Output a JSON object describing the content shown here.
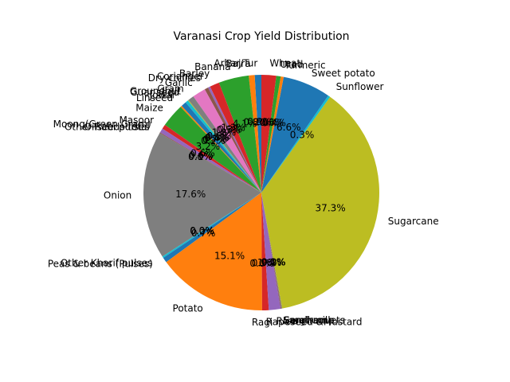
{
  "chart_data": {
    "type": "pie",
    "title": "Varanasi Crop Yield Distribution",
    "start_angle": 90,
    "direction": "counterclockwise",
    "pct_format": "%.1f%%",
    "slices": [
      {
        "label": "Arhar/Tur",
        "value": 0.9,
        "color": "#1f77b4"
      },
      {
        "label": "Bajra",
        "value": 0.8,
        "color": "#ff7f0e"
      },
      {
        "label": "Banana",
        "value": 4.1,
        "color": "#2ca02c"
      },
      {
        "label": "Barley",
        "value": 1.3,
        "color": "#d62728"
      },
      {
        "label": "Coriander",
        "value": 0.3,
        "color": "#9467bd"
      },
      {
        "label": "Dry chillies",
        "value": 0.5,
        "color": "#8c564b"
      },
      {
        "label": "Garlic",
        "value": 1.8,
        "color": "#e377c2"
      },
      {
        "label": "Gram",
        "value": 0.8,
        "color": "#7f7f7f"
      },
      {
        "label": "Groundnut",
        "value": 0.1,
        "color": "#bcbd22"
      },
      {
        "label": "Guar seed",
        "value": 0.4,
        "color": "#17becf"
      },
      {
        "label": "Jowar",
        "value": 0.7,
        "color": "#1f77b4"
      },
      {
        "label": "Linseed",
        "value": 0.2,
        "color": "#ff7f0e"
      },
      {
        "label": "Maize",
        "value": 3.2,
        "color": "#2ca02c"
      },
      {
        "label": "Masoor",
        "value": 0.6,
        "color": "#d62728"
      },
      {
        "label": "Moong(Green Gram)",
        "value": 0.6,
        "color": "#9467bd"
      },
      {
        "label": "Oilseeds total",
        "value": 0.1,
        "color": "#8c564b"
      },
      {
        "label": "Other Rabi pulses",
        "value": 0.0,
        "color": "#e377c2"
      },
      {
        "label": "Onion",
        "value": 17.4,
        "color": "#7f7f7f"
      },
      {
        "label": "Other Kharif pulses",
        "value": 0.0,
        "color": "#bcbd22"
      },
      {
        "label": "Peas & beans (Pulses)",
        "value": 0.2,
        "color": "#17becf"
      },
      {
        "label": "",
        "value": 0.7,
        "color": "#1f77b4"
      },
      {
        "label": "Potato",
        "value": 14.9,
        "color": "#ff7f0e"
      },
      {
        "label": "Ragi",
        "value": 0.0,
        "color": "#2ca02c"
      },
      {
        "label": "Rapeseed &Mustard",
        "value": 0.9,
        "color": "#d62728"
      },
      {
        "label": "Rice",
        "value": 1.6,
        "color": "#9467bd"
      },
      {
        "label": "Sannhamp",
        "value": 0.1,
        "color": "#8c564b"
      },
      {
        "label": "Small millets",
        "value": 0.0,
        "color": "#e377c2"
      },
      {
        "label": "Sorghum",
        "value": 0.1,
        "color": "#7f7f7f"
      },
      {
        "label": "Sugarcane",
        "value": 36.9,
        "color": "#bcbd22"
      },
      {
        "label": "Sunflower",
        "value": 0.3,
        "color": "#17becf"
      },
      {
        "label": "Sweet potato",
        "value": 6.5,
        "color": "#1f77b4"
      },
      {
        "label": "Turmeric",
        "value": 0.4,
        "color": "#ff7f0e"
      },
      {
        "label": "Urad",
        "value": 0.6,
        "color": "#2ca02c"
      },
      {
        "label": "Wheat",
        "value": 2.0,
        "color": "#d62728"
      }
    ]
  }
}
